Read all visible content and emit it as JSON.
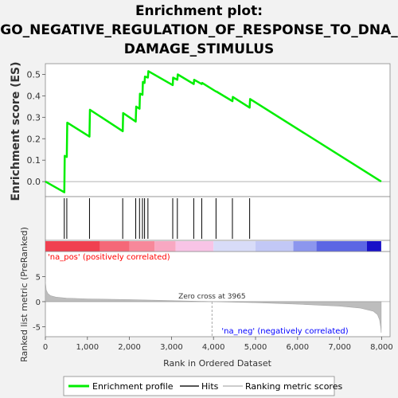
{
  "title_lines": [
    "Enrichment plot:",
    "GO_NEGATIVE_REGULATION_OF_RESPONSE_TO_DNA_",
    "DAMAGE_STIMULUS"
  ],
  "colors": {
    "enrichment": "#00ee00",
    "hits": "#000000",
    "metric": "#bdbdbd",
    "pos_label": "#ff0000",
    "neg_label": "#0000ff",
    "zero_line": "#999999"
  },
  "chart_data": [
    {
      "type": "line",
      "name": "enrichment-profile",
      "ylabel": "Enrichment score (ES)",
      "xlim": [
        0,
        8200
      ],
      "ylim": [
        -0.07,
        0.55
      ],
      "yticks": [
        0.0,
        0.1,
        0.2,
        0.3,
        0.4,
        0.5
      ],
      "ytick_labels": [
        "0.0",
        "0.1",
        "0.2",
        "0.3",
        "0.4",
        "0.5"
      ],
      "grid": false,
      "x": [
        0,
        450,
        460,
        510,
        520,
        1050,
        1060,
        1840,
        1850,
        2150,
        2160,
        2240,
        2250,
        2310,
        2320,
        2360,
        2370,
        2440,
        2450,
        3030,
        3040,
        3140,
        3150,
        3530,
        3540,
        3720,
        3730,
        4060,
        4070,
        4450,
        4460,
        4860,
        4870,
        7990
      ],
      "y": [
        0.0,
        -0.05,
        0.12,
        0.115,
        0.275,
        0.21,
        0.335,
        0.235,
        0.32,
        0.28,
        0.35,
        0.34,
        0.41,
        0.405,
        0.465,
        0.46,
        0.49,
        0.485,
        0.515,
        0.45,
        0.485,
        0.475,
        0.5,
        0.455,
        0.475,
        0.455,
        0.46,
        0.42,
        0.42,
        0.375,
        0.395,
        0.345,
        0.385,
        0.0
      ]
    },
    {
      "type": "hits",
      "name": "hits",
      "positions": [
        450,
        510,
        1050,
        1840,
        2150,
        2240,
        2310,
        2360,
        2440,
        3030,
        3140,
        3530,
        3720,
        4060,
        4450,
        4860
      ]
    },
    {
      "type": "heatmap",
      "name": "ranking-color-bar",
      "segments": [
        {
          "from": 0,
          "to": 1300,
          "color": "#f04050"
        },
        {
          "from": 1300,
          "to": 2000,
          "color": "#f56878"
        },
        {
          "from": 2000,
          "to": 2600,
          "color": "#f7889a"
        },
        {
          "from": 2600,
          "to": 3100,
          "color": "#f8a8c2"
        },
        {
          "from": 3100,
          "to": 4000,
          "color": "#f8c4e6"
        },
        {
          "from": 4000,
          "to": 5000,
          "color": "#d8dcf8"
        },
        {
          "from": 5000,
          "to": 5900,
          "color": "#c2c8f6"
        },
        {
          "from": 5900,
          "to": 6450,
          "color": "#8c96ee"
        },
        {
          "from": 6450,
          "to": 7650,
          "color": "#5c66e4"
        },
        {
          "from": 7650,
          "to": 7990,
          "color": "#1810c8"
        }
      ]
    },
    {
      "type": "area",
      "name": "ranked-list-metric",
      "ylabel": "Ranked list metric (PreRanked)",
      "xlabel": "Rank in Ordered Dataset",
      "xlim": [
        0,
        8200
      ],
      "ylim": [
        -7,
        10
      ],
      "yticks": [
        -5,
        0,
        5
      ],
      "ytick_labels": [
        "-5",
        "0",
        "5"
      ],
      "xticks": [
        0,
        1000,
        2000,
        3000,
        4000,
        5000,
        6000,
        7000,
        8000
      ],
      "xtick_labels": [
        "0",
        "1,000",
        "2,000",
        "3,000",
        "4,000",
        "5,000",
        "6,000",
        "7,000",
        "8,000"
      ],
      "x": [
        0,
        20,
        60,
        120,
        250,
        500,
        1000,
        2000,
        3000,
        3965,
        5000,
        6000,
        7000,
        7500,
        7800,
        7900,
        7950,
        7980,
        7990
      ],
      "y": [
        4.0,
        2.3,
        1.6,
        1.2,
        0.9,
        0.7,
        0.55,
        0.4,
        0.2,
        0.0,
        -0.2,
        -0.5,
        -0.9,
        -1.3,
        -1.9,
        -2.6,
        -3.6,
        -5.2,
        -6.2
      ],
      "zero_cross": 3965,
      "zero_cross_label": "Zero cross at 3965",
      "pos_label": "'na_pos' (positively correlated)",
      "neg_label": "'na_neg' (negatively correlated)"
    }
  ],
  "legend": {
    "placement": "bottom",
    "items": [
      {
        "label": "Enrichment profile",
        "symbol": "line",
        "color": "#00ee00"
      },
      {
        "label": "Hits",
        "symbol": "line",
        "color": "#555555"
      },
      {
        "label": "Ranking metric scores",
        "symbol": "line",
        "color": "#cccccc"
      }
    ]
  }
}
